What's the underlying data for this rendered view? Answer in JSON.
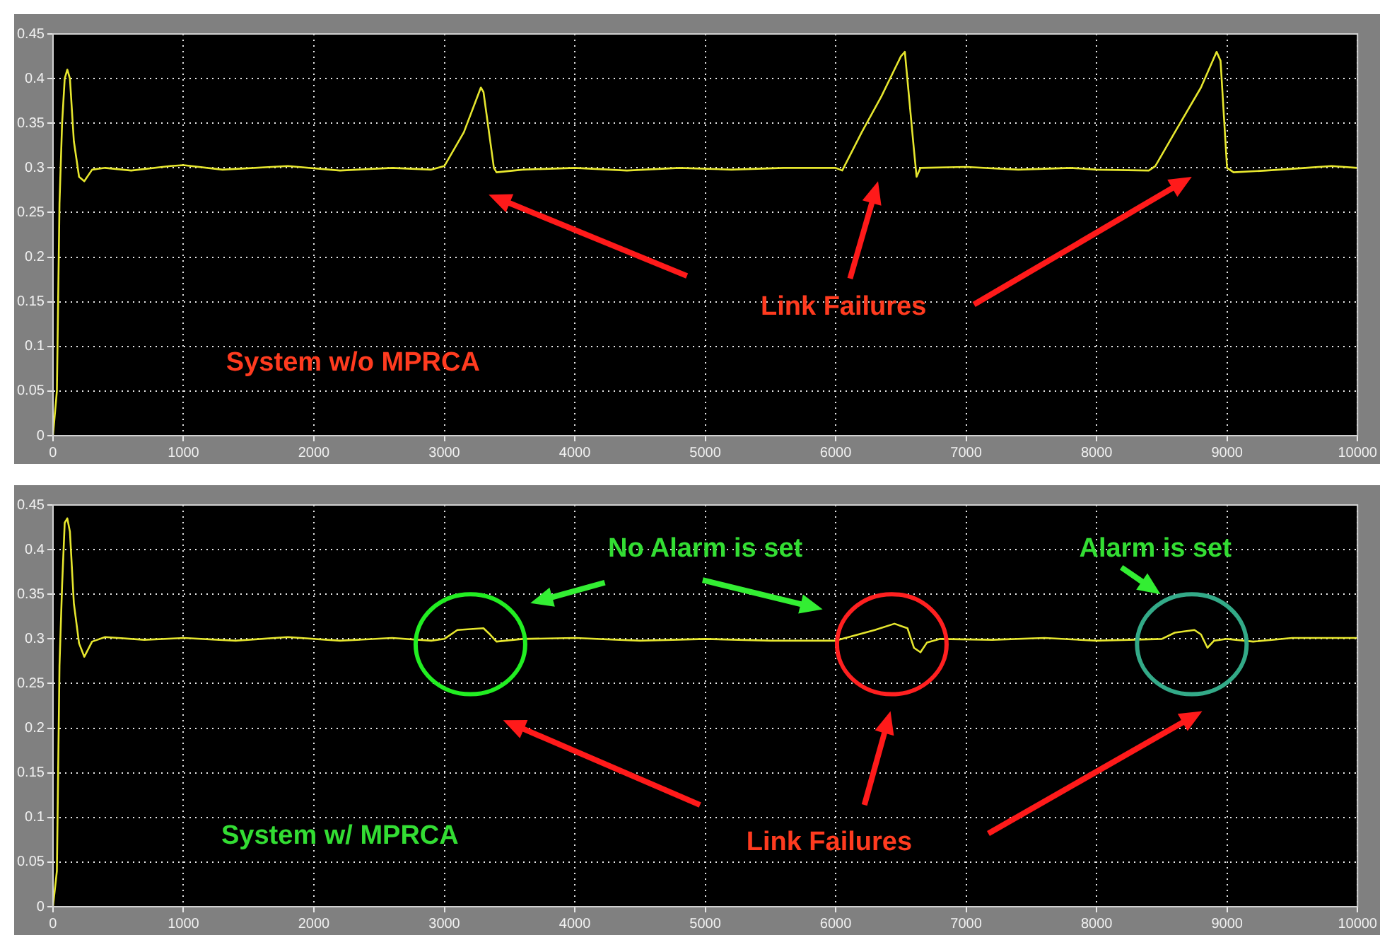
{
  "chart_data": [
    {
      "type": "line",
      "xlim": [
        0,
        10000
      ],
      "xticks": [
        0,
        1000,
        2000,
        3000,
        4000,
        5000,
        6000,
        7000,
        8000,
        9000,
        10000
      ],
      "ylim": [
        0,
        0.45
      ],
      "yticks": [
        0,
        0.05,
        0.1,
        0.15,
        0.2,
        0.25,
        0.3,
        0.35,
        0.4,
        0.45
      ],
      "grid": true,
      "legend": false,
      "series": [
        {
          "color": "#e6e62e",
          "x": [
            0,
            30,
            50,
            70,
            90,
            110,
            130,
            160,
            200,
            240,
            300,
            400,
            600,
            900,
            1000,
            1300,
            1800,
            2200,
            2600,
            2900,
            3000,
            3150,
            3280,
            3300,
            3380,
            3400,
            3600,
            4000,
            4400,
            4800,
            5200,
            5600,
            6000,
            6050,
            6200,
            6350,
            6500,
            6530,
            6600,
            6620,
            6650,
            7000,
            7400,
            7800,
            8000,
            8400,
            8450,
            8600,
            8800,
            8920,
            8950,
            9000,
            9050,
            9300,
            9600,
            9800,
            10000
          ],
          "values": [
            0,
            0.05,
            0.26,
            0.35,
            0.4,
            0.41,
            0.4,
            0.33,
            0.29,
            0.285,
            0.298,
            0.3,
            0.297,
            0.302,
            0.303,
            0.298,
            0.302,
            0.297,
            0.3,
            0.298,
            0.302,
            0.34,
            0.39,
            0.385,
            0.3,
            0.295,
            0.298,
            0.3,
            0.297,
            0.3,
            0.298,
            0.3,
            0.3,
            0.297,
            0.34,
            0.38,
            0.425,
            0.43,
            0.32,
            0.29,
            0.3,
            0.301,
            0.298,
            0.3,
            0.298,
            0.297,
            0.302,
            0.34,
            0.39,
            0.43,
            0.42,
            0.3,
            0.295,
            0.297,
            0.3,
            0.302,
            0.3
          ]
        }
      ],
      "annotations": [
        "System w/o MPRCA",
        "Link Failures"
      ]
    },
    {
      "type": "line",
      "xlim": [
        0,
        10000
      ],
      "xticks": [
        0,
        1000,
        2000,
        3000,
        4000,
        5000,
        6000,
        7000,
        8000,
        9000,
        10000
      ],
      "ylim": [
        0,
        0.45
      ],
      "yticks": [
        0,
        0.05,
        0.1,
        0.15,
        0.2,
        0.25,
        0.3,
        0.35,
        0.4,
        0.45
      ],
      "grid": true,
      "legend": false,
      "series": [
        {
          "color": "#e6e62e",
          "x": [
            0,
            30,
            50,
            70,
            90,
            110,
            130,
            160,
            200,
            240,
            300,
            400,
            700,
            1000,
            1400,
            1800,
            2200,
            2600,
            2900,
            3000,
            3100,
            3300,
            3350,
            3400,
            3600,
            4000,
            4500,
            5000,
            5500,
            6000,
            6100,
            6300,
            6450,
            6550,
            6600,
            6650,
            6700,
            6800,
            7200,
            7600,
            8000,
            8500,
            8600,
            8750,
            8800,
            8850,
            8900,
            9000,
            9200,
            9500,
            10000
          ],
          "values": [
            0,
            0.04,
            0.27,
            0.36,
            0.43,
            0.435,
            0.42,
            0.34,
            0.295,
            0.28,
            0.297,
            0.302,
            0.299,
            0.301,
            0.298,
            0.302,
            0.298,
            0.301,
            0.298,
            0.3,
            0.31,
            0.312,
            0.305,
            0.297,
            0.3,
            0.301,
            0.298,
            0.3,
            0.298,
            0.298,
            0.302,
            0.31,
            0.317,
            0.312,
            0.29,
            0.285,
            0.296,
            0.3,
            0.299,
            0.301,
            0.298,
            0.3,
            0.307,
            0.31,
            0.305,
            0.29,
            0.298,
            0.3,
            0.297,
            0.301,
            0.301
          ]
        }
      ],
      "annotations": [
        "No Alarm is set",
        "Alarm is set",
        "System w/ MPRCA",
        "Link Failures"
      ]
    }
  ]
}
